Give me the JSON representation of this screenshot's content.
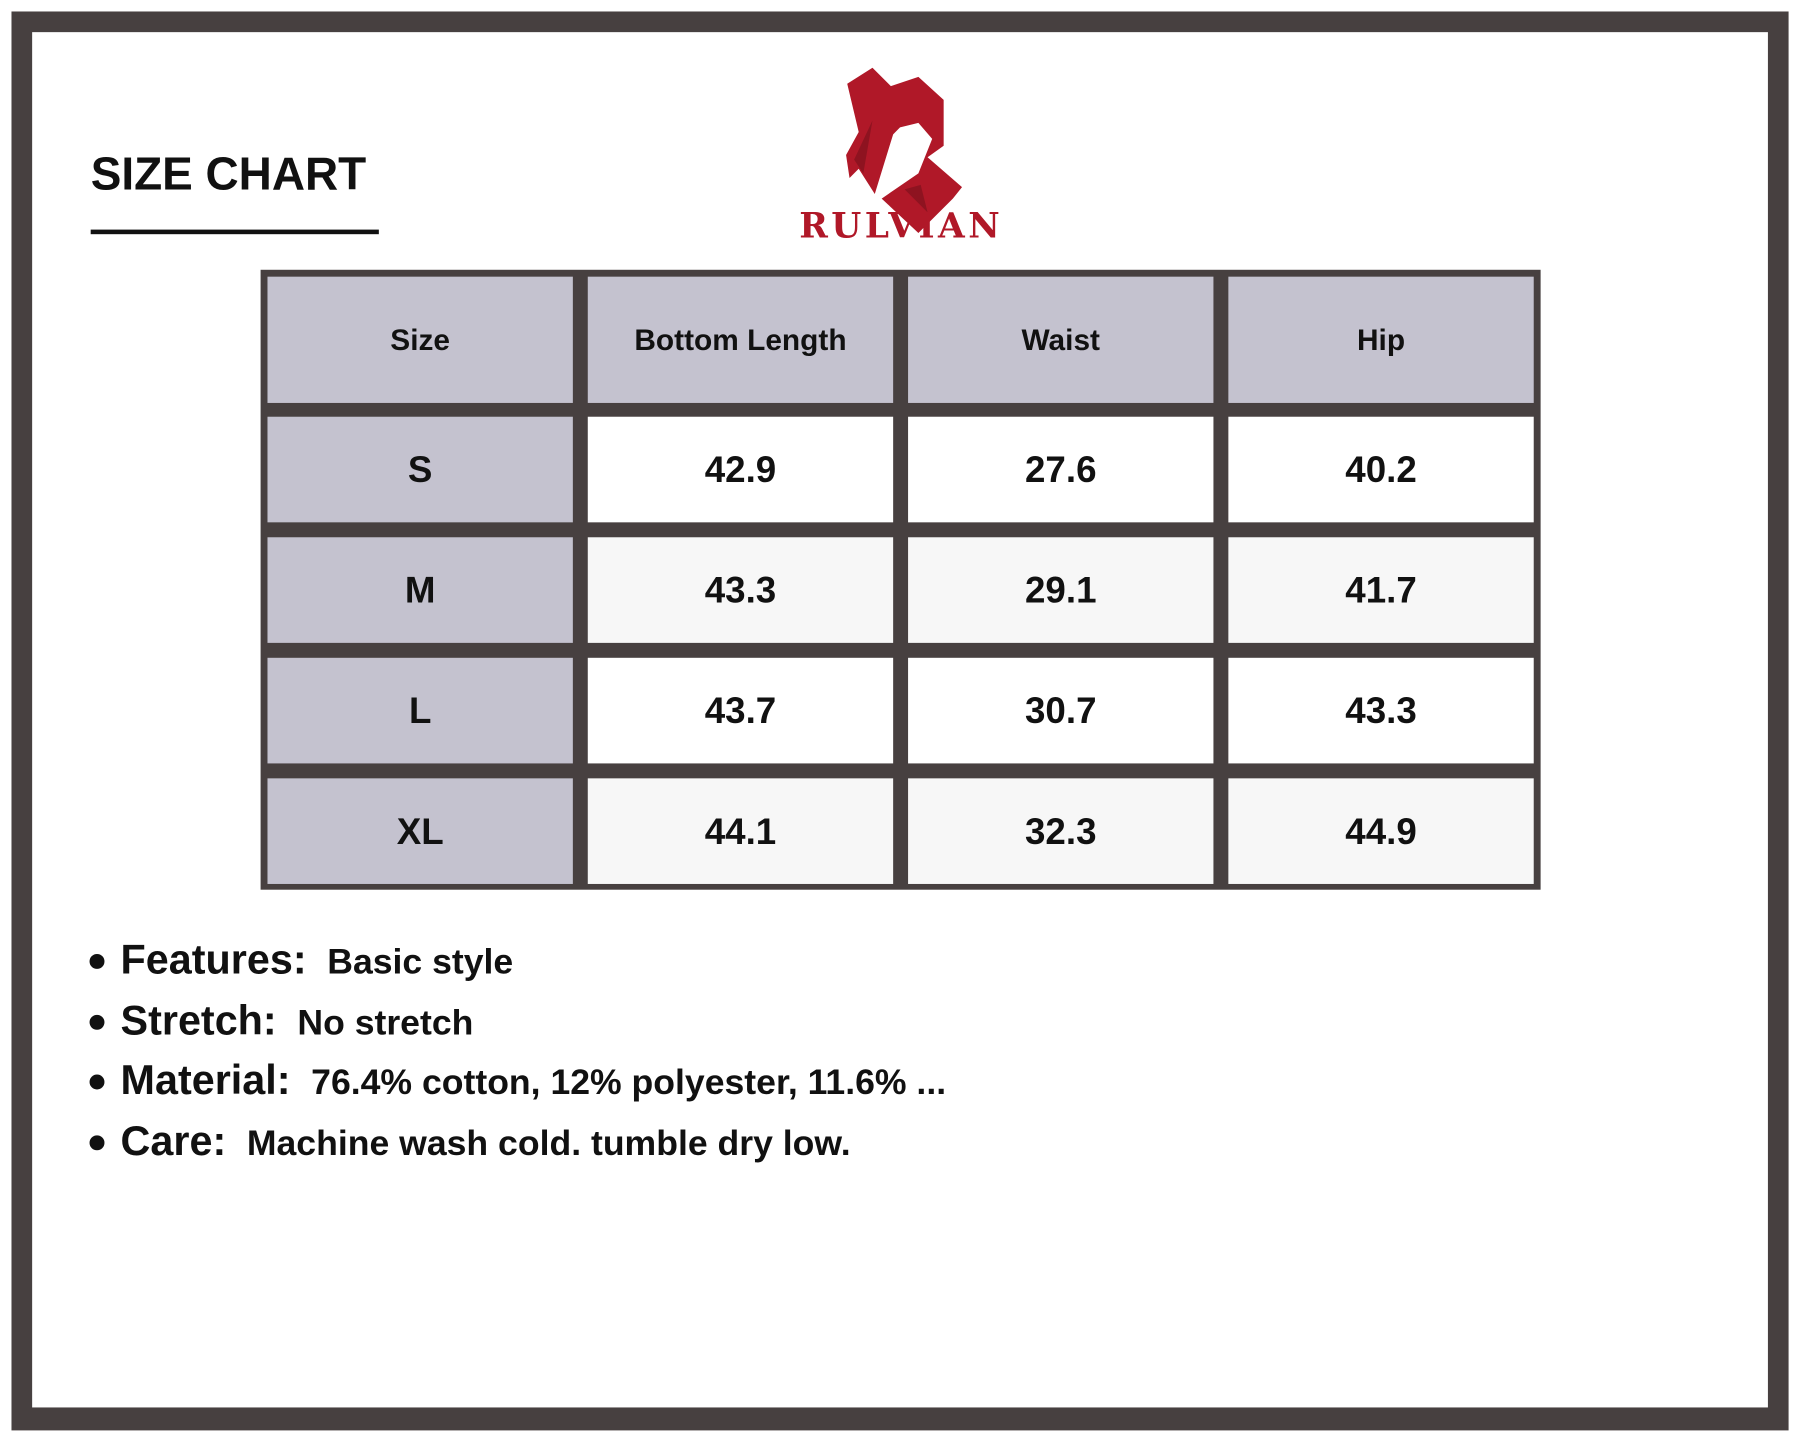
{
  "title": "SIZE CHART",
  "brand": {
    "name": "RULVIAN",
    "color": "#b01828"
  },
  "colors": {
    "border": "#474040",
    "header_fill": "#c4c2cf",
    "row_alt": "#f7f7f7"
  },
  "table": {
    "headers": [
      "Size",
      "Bottom Length",
      "Waist",
      "Hip"
    ],
    "rows": [
      [
        "S",
        "42.9",
        "27.6",
        "40.2"
      ],
      [
        "M",
        "43.3",
        "29.1",
        "41.7"
      ],
      [
        "L",
        "43.7",
        "30.7",
        "43.3"
      ],
      [
        "XL",
        "44.1",
        "32.3",
        "44.9"
      ]
    ]
  },
  "details": [
    {
      "label": "Features:",
      "value": "Basic style"
    },
    {
      "label": "Stretch:",
      "value": "No stretch"
    },
    {
      "label": "Material:",
      "value": "76.4% cotton, 12% polyester, 11.6% ..."
    },
    {
      "label": "Care:",
      "value": "Machine wash cold. tumble dry low."
    }
  ]
}
